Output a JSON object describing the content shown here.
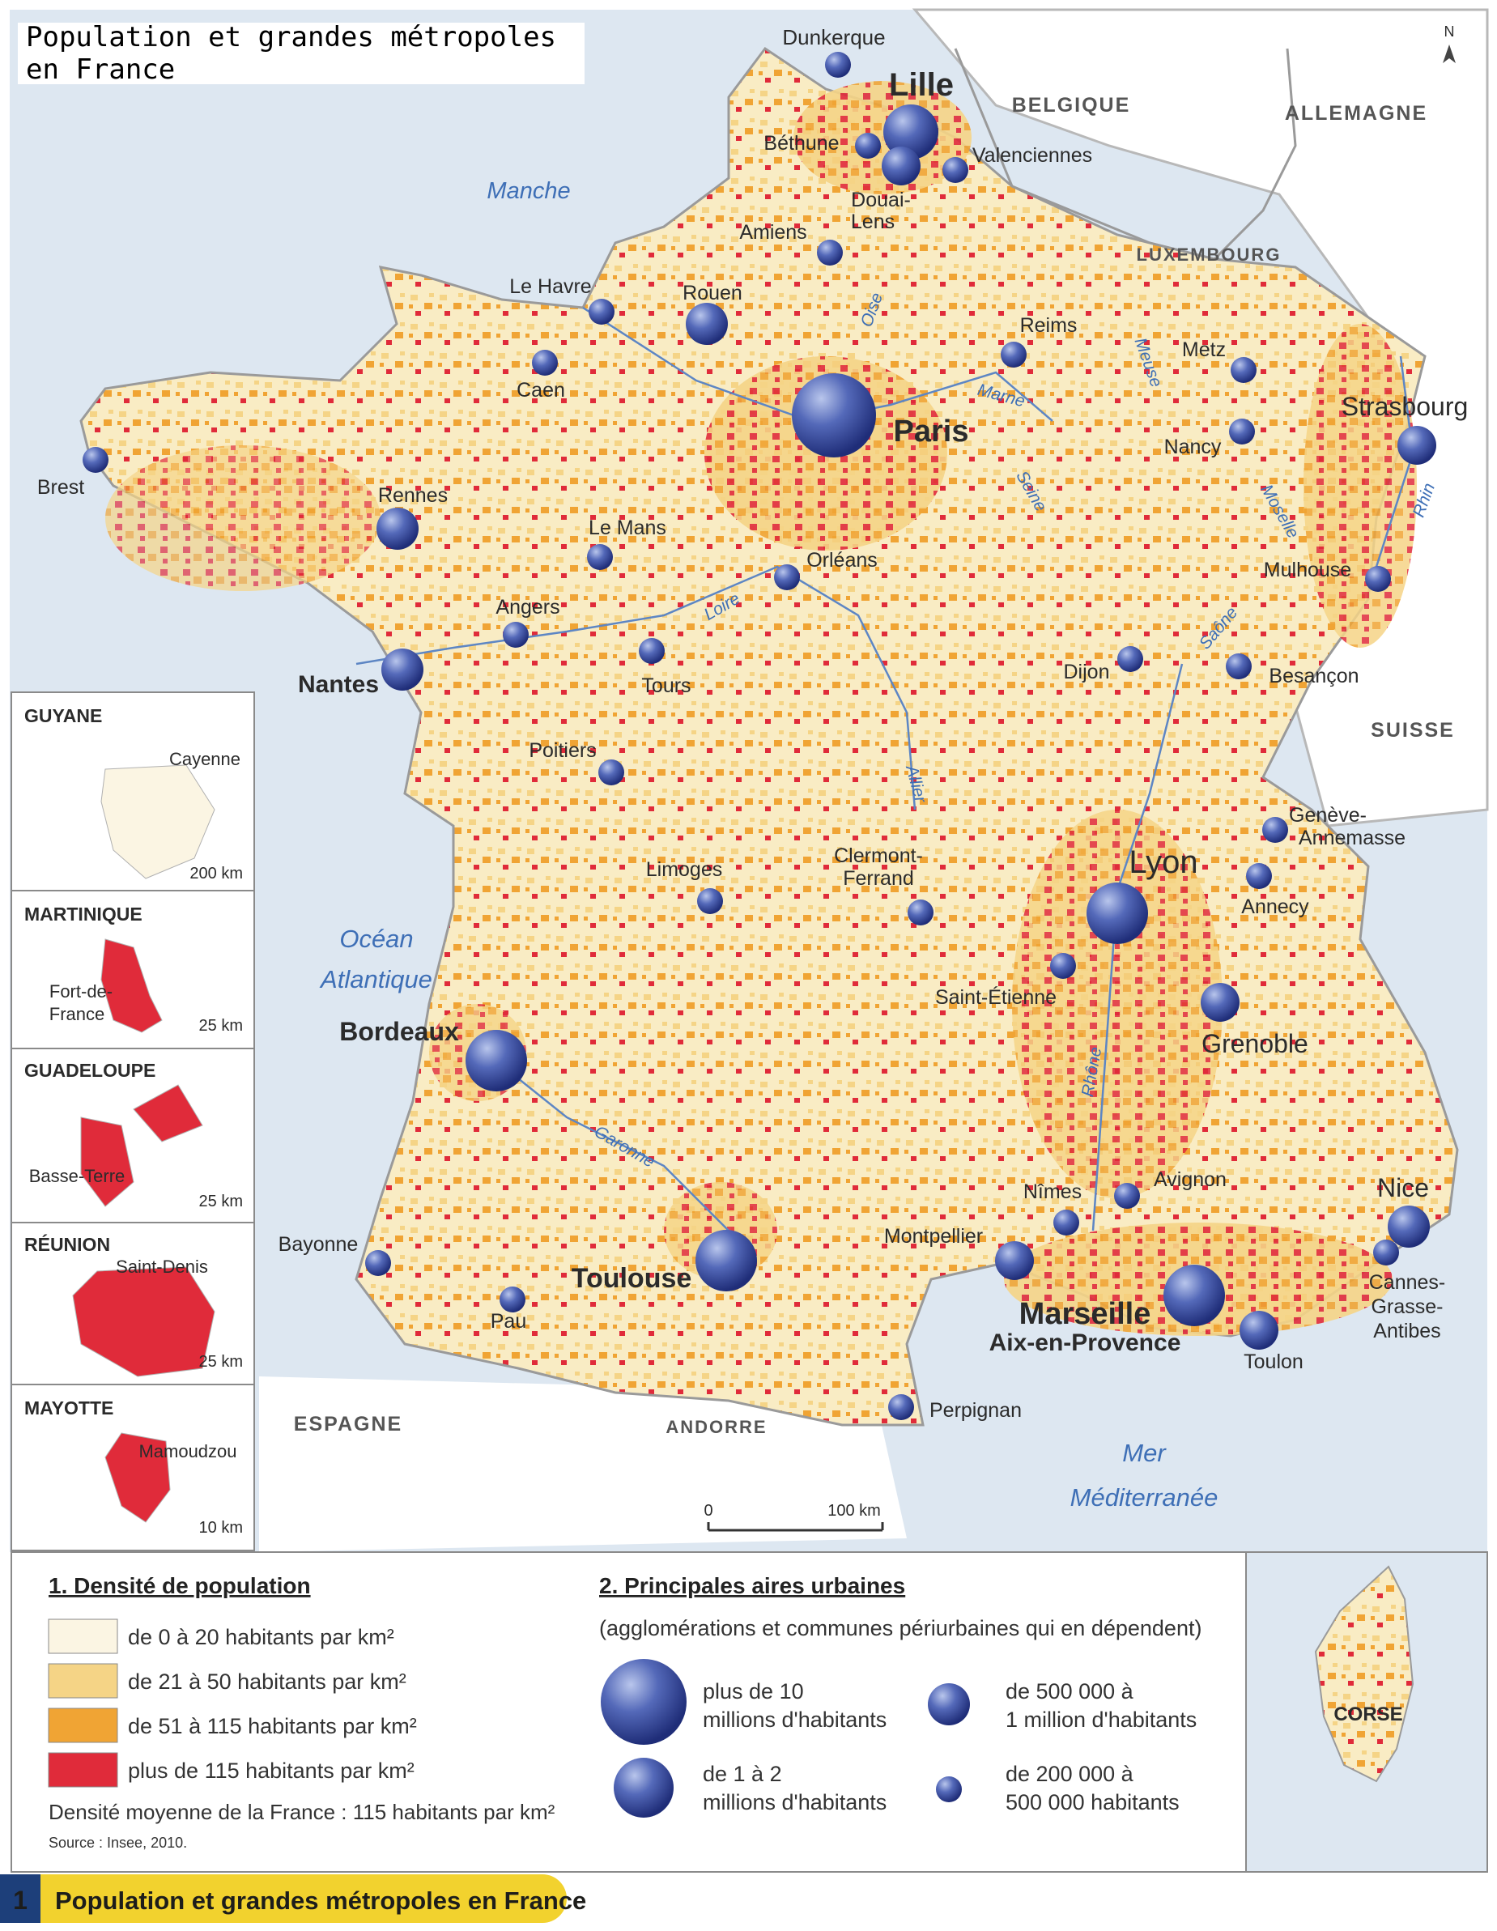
{
  "header": {
    "title": "Population et grandes métropoles en France"
  },
  "north_label": "N",
  "map": {
    "cities_major": [
      {
        "name": "Paris",
        "tier": 1
      },
      {
        "name": "Lille",
        "tier": 2
      },
      {
        "name": "Lyon",
        "tier": 2
      },
      {
        "name": "Marseille",
        "tier": 2
      },
      {
        "name": "Bordeaux",
        "tier": 3
      },
      {
        "name": "Toulouse",
        "tier": 3
      },
      {
        "name": "Nantes",
        "tier": 3
      },
      {
        "name": "Nice",
        "tier": 3
      },
      {
        "name": "Strasbourg",
        "tier": 3
      },
      {
        "name": "Grenoble",
        "tier": 3
      },
      {
        "name": "Rennes",
        "tier": 3
      },
      {
        "name": "Rouen",
        "tier": 3
      },
      {
        "name": "Toulon",
        "tier": 3
      },
      {
        "name": "Montpellier",
        "tier": 3
      }
    ],
    "city_labels": {
      "dunkerque": "Dunkerque",
      "lille": "Lille",
      "bethune": "Béthune",
      "valenciennes": "Valenciennes",
      "douai": "Douai-",
      "lens": "Lens",
      "amiens": "Amiens",
      "le_havre": "Le Havre",
      "rouen": "Rouen",
      "caen": "Caen",
      "reims": "Reims",
      "metz": "Metz",
      "paris": "Paris",
      "strasbourg": "Strasbourg",
      "nancy": "Nancy",
      "brest": "Brest",
      "rennes": "Rennes",
      "le_mans": "Le Mans",
      "orleans": "Orléans",
      "mulhouse": "Mulhouse",
      "angers": "Angers",
      "tours": "Tours",
      "nantes": "Nantes",
      "dijon": "Dijon",
      "besancon": "Besançon",
      "poitiers": "Poitiers",
      "geneve": "Genève-",
      "annemasse": "Annemasse",
      "limoges": "Limoges",
      "clermont1": "Clermont-",
      "clermont2": "Ferrand",
      "lyon": "Lyon",
      "annecy": "Annecy",
      "saint_etienne": "Saint-Étienne",
      "bordeaux": "Bordeaux",
      "grenoble": "Grenoble",
      "nimes": "Nîmes",
      "avignon": "Avignon",
      "nice": "Nice",
      "bayonne": "Bayonne",
      "montpellier": "Montpellier",
      "toulouse": "Toulouse",
      "cannes1": "Cannes-",
      "cannes2": "Grasse-",
      "cannes3": "Antibes",
      "pau": "Pau",
      "marseille": "Marseille",
      "aix": "Aix-en-Provence",
      "toulon": "Toulon",
      "perpignan": "Perpignan"
    },
    "countries": {
      "belgique": "BELGIQUE",
      "allemagne": "ALLEMAGNE",
      "luxembourg": "LUXEMBOURG",
      "suisse": "SUISSE",
      "espagne": "ESPAGNE",
      "andorre": "ANDORRE"
    },
    "seas": {
      "manche": "Manche",
      "ocean1": "Océan",
      "ocean2": "Atlantique",
      "mer1": "Mer",
      "mer2": "Méditerranée"
    },
    "rivers": {
      "oise": "Oise",
      "marne": "Marne",
      "meuse": "Meuse",
      "seine": "Seine",
      "moselle": "Moselle",
      "rhin": "Rhin",
      "loire": "Loire",
      "saone": "Saône",
      "allier": "Allier",
      "rhone": "Rhône",
      "garonne": "Garonne"
    },
    "scale": {
      "zero": "0",
      "value": "100 km"
    }
  },
  "insets": [
    {
      "name": "GUYANE",
      "city": "Cayenne",
      "scale": "200 km"
    },
    {
      "name": "MARTINIQUE",
      "city1": "Fort-de-",
      "city2": "France",
      "scale": "25 km"
    },
    {
      "name": "GUADELOUPE",
      "city": "Basse-Terre",
      "scale": "25 km"
    },
    {
      "name": "RÉUNION",
      "city": "Saint-Denis",
      "scale": "25 km"
    },
    {
      "name": "MAYOTTE",
      "city": "Mamoudzou",
      "scale": "10 km"
    }
  ],
  "corse": {
    "label": "CORSE"
  },
  "legend": {
    "density": {
      "title": "1. Densité de population",
      "items": [
        {
          "label": "de 0 à 20 habitants par km²",
          "color": "#fbf5e3"
        },
        {
          "label": "de 21 à 50 habitants par km²",
          "color": "#f5d486"
        },
        {
          "label": "de 51 à 115 habitants par km²",
          "color": "#f0a434"
        },
        {
          "label": "plus de 115 habitants par km²",
          "color": "#e02b3a"
        }
      ],
      "average": "Densité moyenne de la France : 115 habitants par km²",
      "source": "Source : Insee, 2010."
    },
    "urban": {
      "title": "2. Principales aires urbaines",
      "subtitle": "(agglomérations et communes périurbaines qui en dépendent)",
      "items": [
        {
          "line1": "plus de 10",
          "line2": "millions d'habitants"
        },
        {
          "line1": "de 1 à 2",
          "line2": "millions d'habitants"
        },
        {
          "line1": "de 500 000 à",
          "line2": "1 million d'habitants"
        },
        {
          "line1": "de 200 000 à",
          "line2": "500 000 habitants"
        }
      ]
    }
  },
  "footer": {
    "number": "1",
    "title": "Population et grandes métropoles en France"
  },
  "colors": {
    "sea": "#dde7f1",
    "land_other": "#ffffff",
    "low": "#fbf5e3",
    "mid": "#f5d486",
    "high": "#f0a434",
    "urban": "#e02b3a",
    "bubble": "#3e55a8",
    "footer_bar": "#f2d22e"
  }
}
